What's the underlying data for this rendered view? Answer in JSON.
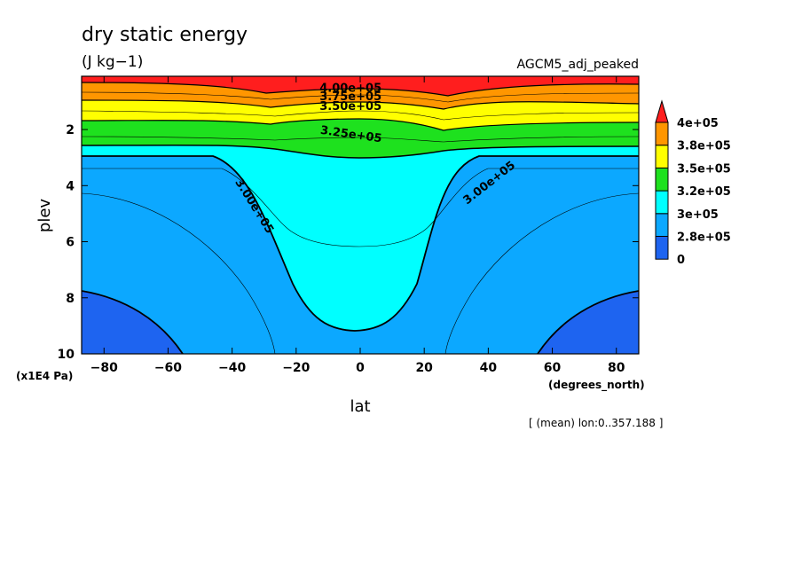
{
  "chart_data": {
    "type": "heatmap",
    "title": "dry static energy",
    "units": "(J kg−1)",
    "dataset": "AGCM5_adj_peaked",
    "xlabel": "lat",
    "xunits": "(degrees_north)",
    "ylabel": "plev",
    "yunits": "(x1E4 Pa)",
    "note": "[ (mean) lon:0..357.188 ]",
    "xlim": [
      -87,
      87
    ],
    "ylim": [
      10,
      0.1
    ],
    "x_ticks": [
      -80,
      -60,
      -40,
      -20,
      0,
      20,
      40,
      60,
      80
    ],
    "x_tick_labels": [
      "−80",
      "−60",
      "−40",
      "−20",
      "0",
      "20",
      "40",
      "60",
      "80"
    ],
    "y_ticks": [
      2,
      4,
      6,
      8,
      10
    ],
    "y_tick_labels": [
      "2",
      "4",
      "6",
      "8",
      "10"
    ],
    "legend": {
      "position": "right",
      "colors": [
        "#1e64f0",
        "#0ca8ff",
        "#00ffff",
        "#1ee11e",
        "#ffff00",
        "#ff9600"
      ],
      "top_arrow_color": "#ff1e1e",
      "labels": [
        "0",
        "2.8e+05",
        "3e+05",
        "3.2e+05",
        "3.5e+05",
        "3.8e+05",
        "4e+05"
      ]
    },
    "contour_labels": [
      {
        "text": "4.00e+05",
        "lat": -3,
        "plev": 0.65
      },
      {
        "text": "3.75e+05",
        "lat": -3,
        "plev": 0.95
      },
      {
        "text": "3.50e+05",
        "lat": -3,
        "plev": 1.3
      },
      {
        "text": "3.25e+05",
        "lat": -3,
        "plev": 2.3
      },
      {
        "text": "3.00e+05",
        "lat": -34,
        "plev": 4.8
      },
      {
        "text": "3.00e+05",
        "lat": 41,
        "plev": 4.0
      }
    ],
    "levels_Jkg": [
      280000,
      300000,
      325000,
      350000,
      375000,
      400000
    ]
  }
}
